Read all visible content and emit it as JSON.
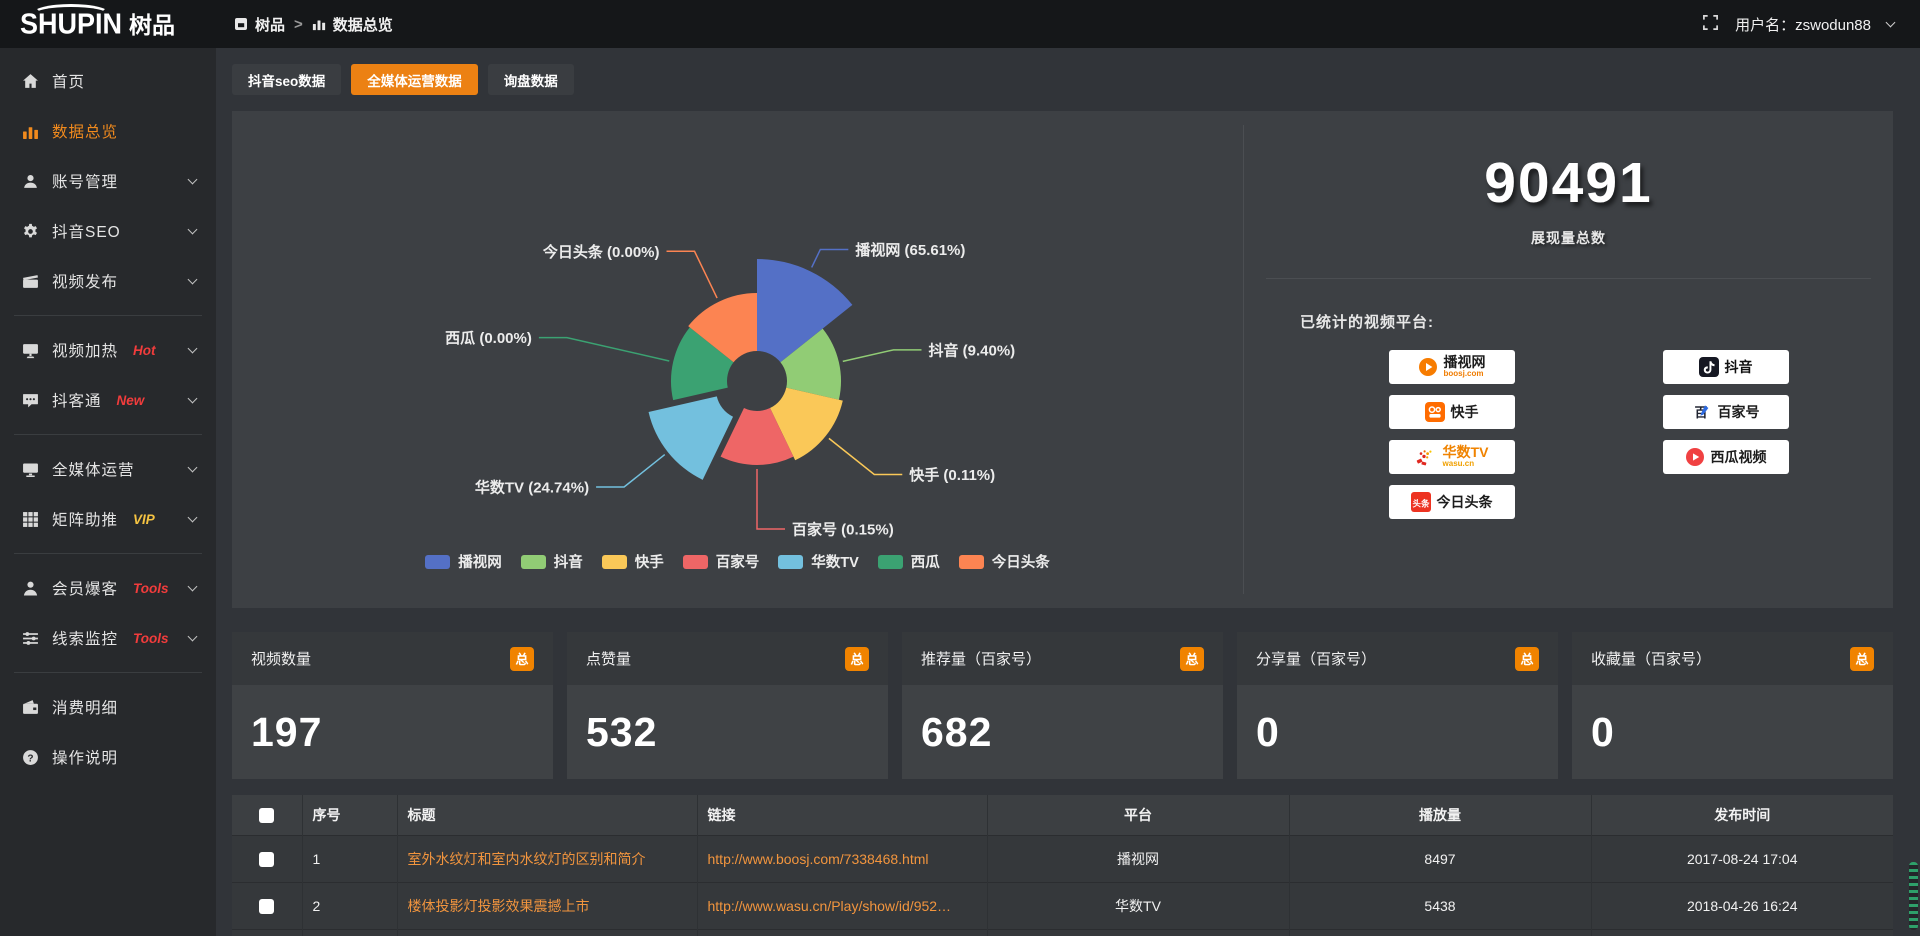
{
  "colors": {
    "accent_orange": "#ec8113",
    "badge_orange": "#f08300",
    "link_orange": "#f2953e",
    "hot_red": "#f23c3c",
    "vip_yellow": "#f5c342",
    "topbar_bg": "#151719",
    "sidebar_bg": "#27292c",
    "page_bg": "#313439",
    "panel_bg": "#3d4044"
  },
  "topbar": {
    "logo_main": "SHUPIN",
    "logo_cn": "树品",
    "breadcrumb_home": "树品",
    "breadcrumb_sep": ">",
    "breadcrumb_current": "数据总览",
    "username": "用户名：zswodun88"
  },
  "sidebar": {
    "items": [
      {
        "key": "home",
        "icon": "home-icon",
        "label": "首页"
      },
      {
        "key": "data-overview",
        "icon": "bar-chart-icon",
        "label": "数据总览",
        "active": true
      },
      {
        "key": "account-manage",
        "icon": "user-icon",
        "label": "账号管理",
        "chevron": true
      },
      {
        "key": "douyin-seo",
        "icon": "gear-icon",
        "label": "抖音SEO",
        "chevron": true
      },
      {
        "key": "video-publish",
        "icon": "clapper-icon",
        "label": "视频发布",
        "chevron": true,
        "divider_after": true
      },
      {
        "key": "video-heat",
        "icon": "screen-icon",
        "label": "视频加热",
        "badge": "Hot",
        "badge_color": "#f23c3c",
        "chevron": true
      },
      {
        "key": "doukertong",
        "icon": "chat-icon",
        "label": "抖客通",
        "badge": "New",
        "badge_color": "#f23c3c",
        "chevron": true,
        "divider_after": true
      },
      {
        "key": "omni-media",
        "icon": "monitor-icon",
        "label": "全媒体运营",
        "chevron": true
      },
      {
        "key": "matrix-boost",
        "icon": "grid-icon",
        "label": "矩阵助推",
        "badge": "VIP",
        "badge_color": "#f5c342",
        "chevron": true,
        "divider_after": true
      },
      {
        "key": "member-booster",
        "icon": "person-icon",
        "label": "会员爆客",
        "badge": "Tools",
        "badge_color": "#f23c3c",
        "chevron": true
      },
      {
        "key": "lead-monitor",
        "icon": "sliders-icon",
        "label": "线索监控",
        "badge": "Tools",
        "badge_color": "#f23c3c",
        "chevron": true,
        "divider_after": true
      },
      {
        "key": "expense-detail",
        "icon": "wallet-icon",
        "label": "消费明细"
      },
      {
        "key": "guide",
        "icon": "help-icon",
        "label": "操作说明"
      }
    ]
  },
  "tabs": [
    {
      "key": "douyin-seo-data",
      "label": "抖音seo数据"
    },
    {
      "key": "omni-media-data",
      "label": "全媒体运营数据",
      "active": true
    },
    {
      "key": "inquiry-data",
      "label": "询盘数据"
    }
  ],
  "chart_data": {
    "type": "pie",
    "subtype": "nightingale-rose",
    "inner_radius": 30,
    "legend_position": "bottom",
    "slices": [
      {
        "key": "boosj",
        "name": "播视网",
        "pct": 65.61,
        "label": "播视网 (65.61%)",
        "color": "#5470c6",
        "radius": 122,
        "line_len": 20
      },
      {
        "key": "douyin",
        "name": "抖音",
        "pct": 9.4,
        "label": "抖音 (9.40%)",
        "color": "#91cc75",
        "radius": 84,
        "line_len": 52
      },
      {
        "key": "kuaishou",
        "name": "快手",
        "pct": 0.11,
        "label": "快手 (0.11%)",
        "color": "#fac858",
        "radius": 88,
        "line_len": 58
      },
      {
        "key": "baijiahao",
        "name": "百家号",
        "pct": 0.15,
        "label": "百家号 (0.15%)",
        "color": "#ee6666",
        "radius": 84,
        "line_len": 60
      },
      {
        "key": "wasu",
        "name": "华数TV",
        "pct": 24.74,
        "label": "华数TV (24.74%)",
        "color": "#73c0de",
        "radius": 100,
        "line_len": 52,
        "offset": 14
      },
      {
        "key": "xigua",
        "name": "西瓜",
        "pct": 0.0,
        "label": "西瓜 (0.00%)",
        "color": "#3ba272",
        "radius": 86,
        "line_len": 105
      },
      {
        "key": "toutiao",
        "name": "今日头条",
        "pct": 0.0,
        "label": "今日头条 (0.00%)",
        "color": "#fc8452",
        "radius": 88,
        "line_len": 52
      }
    ]
  },
  "summary": {
    "total": "90491",
    "total_label": "展现量总数",
    "platforms_title": "已统计的视频平台:",
    "platforms": [
      {
        "key": "boosj",
        "icon": "boosj-icon",
        "label": "播视网",
        "label_color": "#1c1c1c",
        "sub": "boosj.com",
        "sub_color": "#f07c00"
      },
      {
        "key": "douyin",
        "icon": "douyin-icon",
        "label": "抖音",
        "label_color": "#111111"
      },
      {
        "key": "kuaishou",
        "icon": "kuaishou-icon",
        "label": "快手",
        "label_color": "#1c1c1c"
      },
      {
        "key": "baijiahao",
        "icon": "baijiahao-icon",
        "label": "百家号",
        "label_color": "#1c1c1c"
      },
      {
        "key": "wasu",
        "icon": "wasu-icon",
        "label": "华数TV",
        "label_color": "#f08300",
        "sub": "wasu.cn",
        "sub_color": "#f0a000"
      },
      {
        "key": "xigua",
        "icon": "xigua-icon",
        "label": "西瓜视频",
        "label_color": "#1c1c1c"
      },
      {
        "key": "toutiao",
        "icon": "toutiao-icon",
        "label": "今日头条",
        "label_color": "#1c1c1c"
      }
    ]
  },
  "stat_cards": [
    {
      "key": "video-count",
      "label": "视频数量",
      "badge": "总",
      "value": "197"
    },
    {
      "key": "likes",
      "label": "点赞量",
      "badge": "总",
      "value": "532"
    },
    {
      "key": "recommends",
      "label": "推荐量（百家号）",
      "badge": "总",
      "value": "682"
    },
    {
      "key": "shares",
      "label": "分享量（百家号）",
      "badge": "总",
      "value": "0"
    },
    {
      "key": "favorites",
      "label": "收藏量（百家号）",
      "badge": "总",
      "value": "0"
    }
  ],
  "table": {
    "headers": [
      "序号",
      "标题",
      "链接",
      "平台",
      "播放量",
      "发布时间"
    ],
    "rows": [
      {
        "index": "1",
        "title": "室外水纹灯和室内水纹灯的区别和简介",
        "link": "http://www.boosj.com/7338468.html",
        "platform": "播视网",
        "plays": "8497",
        "time": "2017-08-24 17:04"
      },
      {
        "index": "2",
        "title": "楼体投影灯投影效果震撼上市",
        "link": "http://www.wasu.cn/Play/show/id/952…",
        "platform": "华数TV",
        "plays": "5438",
        "time": "2018-04-26 16:24"
      }
    ]
  }
}
